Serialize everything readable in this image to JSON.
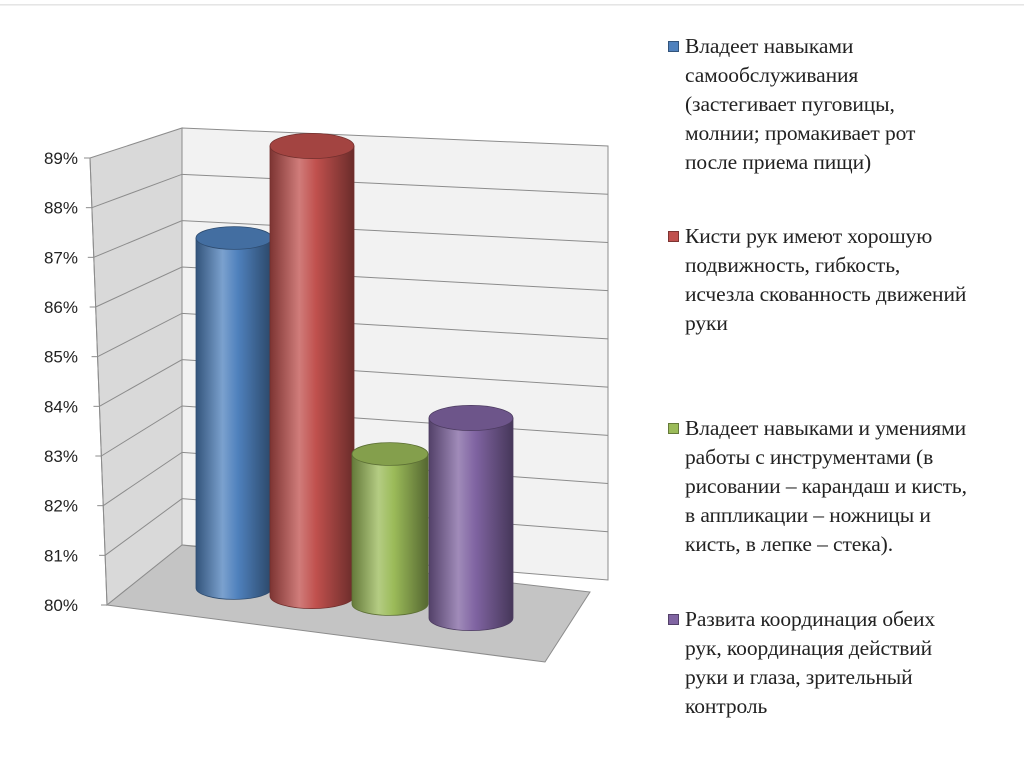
{
  "chart_data": {
    "type": "bar",
    "style": "3d-cylinder",
    "categories": [
      "Владеет навыками\nсамообслуживания\n(застегивает пуговицы,\nмолнии; промакивает рот\nпосле приема пищи)",
      "Кисти рук имеют хорошую\nподвижность, гибкость,\nисчезла скованность движений\nруки",
      "Владеет навыками и умениями\nработы с инструментами (в\nрисовании – карандаш и кисть,\nв аппликации – ножницы и\nкисть, в лепке – стека).",
      "Развита координация обеих\nрук, координация действий\nруки и глаза, зрительный\nконтроль"
    ],
    "values": [
      87,
      89,
      83,
      84
    ],
    "colors": [
      "#4f81bd",
      "#c0504d",
      "#9bbb59",
      "#8064a2"
    ],
    "ylim": [
      80,
      89
    ],
    "yticks": [
      "80%",
      "81%",
      "82%",
      "83%",
      "84%",
      "85%",
      "86%",
      "87%",
      "88%",
      "89%"
    ],
    "grid": true,
    "legend_position": "right"
  }
}
